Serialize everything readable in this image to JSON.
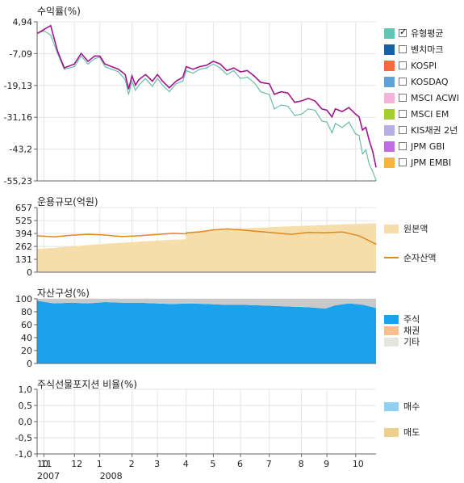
{
  "colors": {
    "fund": "#a0158f",
    "benchmark": "#5fb8a4",
    "principal": "#f6deaa",
    "net_assets": "#e08a1e",
    "stock": "#1aa3ec",
    "bond": "#f7bf8c",
    "other": "#c9c9c9",
    "buy": "#8fd0f3",
    "sell": "#ecd08c",
    "grid": "#e4e4e4",
    "axis": "#666666"
  },
  "legend_returns": [
    {
      "label": "유형평균",
      "color": "#5fc8b5",
      "checked": true
    },
    {
      "label": "벤치마크",
      "color": "#1461a8",
      "checked": false
    },
    {
      "label": "KOSPI",
      "color": "#f56a38",
      "checked": false
    },
    {
      "label": "KOSDAQ",
      "color": "#5ba3d9",
      "checked": false
    },
    {
      "label": "MSCI ACWI",
      "color": "#f4b4d9",
      "checked": false
    },
    {
      "label": "MSCI EM",
      "color": "#a4cf2a",
      "checked": false
    },
    {
      "label": "KIS채권 2년",
      "color": "#b7b0e4",
      "checked": false
    },
    {
      "label": "JPM GBI",
      "color": "#c26be3",
      "checked": false
    },
    {
      "label": "JPM EMBI",
      "color": "#f8b33c",
      "checked": false
    }
  ],
  "legend_size": [
    {
      "label": "원본액",
      "kind": "area",
      "color": "#f6deaa"
    },
    {
      "label": "순자산액",
      "kind": "line",
      "color": "#e08a1e"
    }
  ],
  "legend_assets": [
    {
      "label": "주식",
      "color": "#1aa3ec"
    },
    {
      "label": "채권",
      "color": "#f7bf8c"
    },
    {
      "label": "기타",
      "color": "#e6e6de"
    }
  ],
  "legend_futures": [
    {
      "label": "매수",
      "color": "#8fd0f3"
    },
    {
      "label": "매도",
      "color": "#ecd08c"
    }
  ],
  "x_axis": {
    "month_ticks": [
      "10",
      "11",
      "12",
      "1",
      "2",
      "3",
      "4",
      "5",
      "6",
      "7",
      "8",
      "9",
      "10"
    ],
    "month_tick_positions": [
      0.0,
      0.02,
      0.11,
      0.185,
      0.28,
      0.355,
      0.44,
      0.52,
      0.6,
      0.685,
      0.78,
      0.855,
      0.94
    ],
    "year_labels": [
      {
        "label": "2007",
        "position": 0.0
      },
      {
        "label": "2008",
        "position": 0.185
      }
    ]
  },
  "chart_data": [
    {
      "type": "line",
      "title": "수익률(%)",
      "ylim": [
        -55.23,
        4.94
      ],
      "yticks": [
        "4,94",
        "-7,09",
        "-19,13",
        "-31,16",
        "-43,2",
        "-55,23"
      ],
      "ytick_values": [
        4.94,
        -7.09,
        -19.13,
        -31.16,
        -43.2,
        -55.23
      ],
      "x": [
        0,
        0.02,
        0.04,
        0.06,
        0.08,
        0.11,
        0.13,
        0.15,
        0.17,
        0.185,
        0.2,
        0.22,
        0.24,
        0.26,
        0.27,
        0.28,
        0.29,
        0.3,
        0.32,
        0.34,
        0.355,
        0.37,
        0.39,
        0.41,
        0.43,
        0.44,
        0.46,
        0.48,
        0.5,
        0.52,
        0.54,
        0.56,
        0.58,
        0.6,
        0.62,
        0.64,
        0.66,
        0.685,
        0.7,
        0.72,
        0.74,
        0.76,
        0.78,
        0.8,
        0.82,
        0.84,
        0.855,
        0.87,
        0.88,
        0.9,
        0.92,
        0.94,
        0.95,
        0.96,
        0.97,
        0.98,
        0.99,
        1.0
      ],
      "series": [
        {
          "name": "유형평균",
          "values": [
            0.5,
            1.5,
            0.0,
            -7.0,
            -13.0,
            -12.0,
            -8.0,
            -11.0,
            -9.0,
            -8.5,
            -12.0,
            -13.0,
            -14.0,
            -17.0,
            -22.5,
            -17.5,
            -21.0,
            -19.0,
            -16.5,
            -19.5,
            -16.5,
            -19.0,
            -21.5,
            -18.5,
            -17.5,
            -13.5,
            -14.5,
            -13.0,
            -12.5,
            -11.0,
            -12.5,
            -15.0,
            -13.5,
            -16.5,
            -16.0,
            -18.0,
            -21.5,
            -22.5,
            -28.0,
            -26.5,
            -27.0,
            -30.5,
            -30.0,
            -28.0,
            -28.5,
            -32.5,
            -33.0,
            -37.0,
            -33.5,
            -35.0,
            -33.0,
            -37.5,
            -38.0,
            -45.0,
            -43.5,
            -49.0,
            -51.5,
            -55.0
          ]
        },
        {
          "name": "fund",
          "values": [
            0.5,
            2.0,
            3.5,
            -6.0,
            -12.5,
            -11.0,
            -7.0,
            -10.0,
            -8.0,
            -8.0,
            -11.0,
            -12.0,
            -13.0,
            -15.0,
            -20.5,
            -15.5,
            -19.0,
            -17.0,
            -15.0,
            -17.5,
            -15.0,
            -17.5,
            -20.0,
            -17.5,
            -16.0,
            -12.0,
            -13.0,
            -12.0,
            -11.5,
            -10.0,
            -11.0,
            -13.5,
            -12.5,
            -14.0,
            -13.5,
            -15.5,
            -18.0,
            -18.5,
            -22.5,
            -21.5,
            -22.0,
            -25.5,
            -25.0,
            -24.0,
            -25.0,
            -28.0,
            -28.5,
            -31.0,
            -28.0,
            -29.0,
            -27.5,
            -30.0,
            -31.0,
            -36.0,
            -35.0,
            -40.0,
            -44.0,
            -50.0
          ]
        }
      ]
    },
    {
      "type": "area",
      "title": "운용규모(억원)",
      "ylim": [
        0,
        657
      ],
      "yticks": [
        "657",
        "525",
        "394",
        "262",
        "131",
        "0"
      ],
      "ytick_values": [
        657,
        525,
        394,
        262,
        131,
        0
      ],
      "x": [
        0,
        0.05,
        0.1,
        0.15,
        0.2,
        0.25,
        0.3,
        0.35,
        0.4,
        0.44,
        0.441,
        0.48,
        0.52,
        0.56,
        0.6,
        0.65,
        0.7,
        0.75,
        0.8,
        0.85,
        0.9,
        0.95,
        1.0
      ],
      "series": [
        {
          "name": "원본액",
          "values": [
            235,
            248,
            262,
            275,
            288,
            300,
            310,
            320,
            330,
            335,
            410,
            420,
            428,
            436,
            444,
            452,
            460,
            467,
            473,
            480,
            486,
            492,
            498
          ]
        },
        {
          "name": "순자산액",
          "values": [
            370,
            360,
            375,
            385,
            378,
            362,
            370,
            382,
            395,
            390,
            400,
            410,
            430,
            440,
            430,
            415,
            400,
            385,
            405,
            400,
            410,
            370,
            285
          ]
        }
      ]
    },
    {
      "type": "area",
      "title": "자산구성(%)",
      "ylim": [
        0,
        100
      ],
      "yticks": [
        "100",
        "80",
        "60",
        "40",
        "20",
        "0"
      ],
      "ytick_values": [
        100,
        80,
        60,
        40,
        20,
        0
      ],
      "x": [
        0,
        0.05,
        0.1,
        0.15,
        0.2,
        0.25,
        0.3,
        0.35,
        0.4,
        0.45,
        0.5,
        0.55,
        0.6,
        0.65,
        0.7,
        0.75,
        0.8,
        0.85,
        0.88,
        0.92,
        0.96,
        1.0
      ],
      "series": [
        {
          "name": "주식",
          "values": [
            97,
            93,
            94,
            93,
            95,
            94,
            94,
            93,
            92,
            93,
            92,
            91,
            91,
            90,
            89,
            88,
            87,
            85,
            90,
            93,
            91,
            86
          ]
        },
        {
          "name": "채권",
          "values": [
            0,
            0,
            0,
            0,
            0,
            0,
            0,
            0,
            0,
            0,
            0,
            0,
            0,
            0,
            0,
            0,
            0,
            0,
            0,
            0,
            0,
            0
          ]
        },
        {
          "name": "기타",
          "values": [
            3,
            7,
            6,
            7,
            5,
            6,
            6,
            7,
            8,
            7,
            8,
            9,
            9,
            10,
            11,
            12,
            13,
            15,
            10,
            7,
            9,
            14
          ]
        }
      ]
    },
    {
      "type": "bar",
      "title": "주식선물포지션 비율(%)",
      "ylim": [
        -1.0,
        1.0
      ],
      "yticks": [
        "1,0",
        "0,5",
        "0,0",
        "-0,5",
        "-1,0"
      ],
      "ytick_values": [
        1.0,
        0.5,
        0.0,
        -0.5,
        -1.0
      ],
      "series": [
        {
          "name": "매수",
          "values": []
        },
        {
          "name": "매도",
          "values": []
        }
      ]
    }
  ]
}
